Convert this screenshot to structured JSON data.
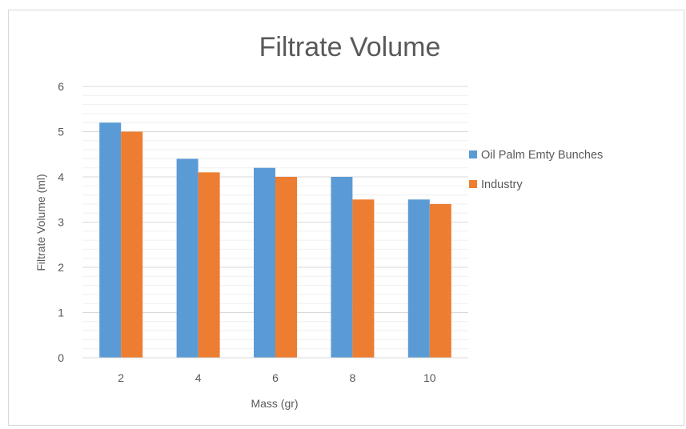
{
  "chart_data": {
    "type": "bar",
    "title": "Filtrate Volume",
    "xlabel": "Mass (gr)",
    "ylabel": "Filtrate Volume (ml)",
    "categories": [
      "2",
      "4",
      "6",
      "8",
      "10"
    ],
    "series": [
      {
        "name": "Oil Palm Emty Bunches",
        "color": "#5b9bd5",
        "values": [
          5.2,
          4.4,
          4.2,
          4.0,
          3.5
        ]
      },
      {
        "name": "Industry",
        "color": "#ed7d31",
        "values": [
          5.0,
          4.1,
          4.0,
          3.5,
          3.4
        ]
      }
    ],
    "ylim": [
      0,
      6
    ],
    "yticks": [
      "0",
      "1",
      "2",
      "3",
      "4",
      "5",
      "6"
    ],
    "grid": true,
    "legend": "right"
  }
}
